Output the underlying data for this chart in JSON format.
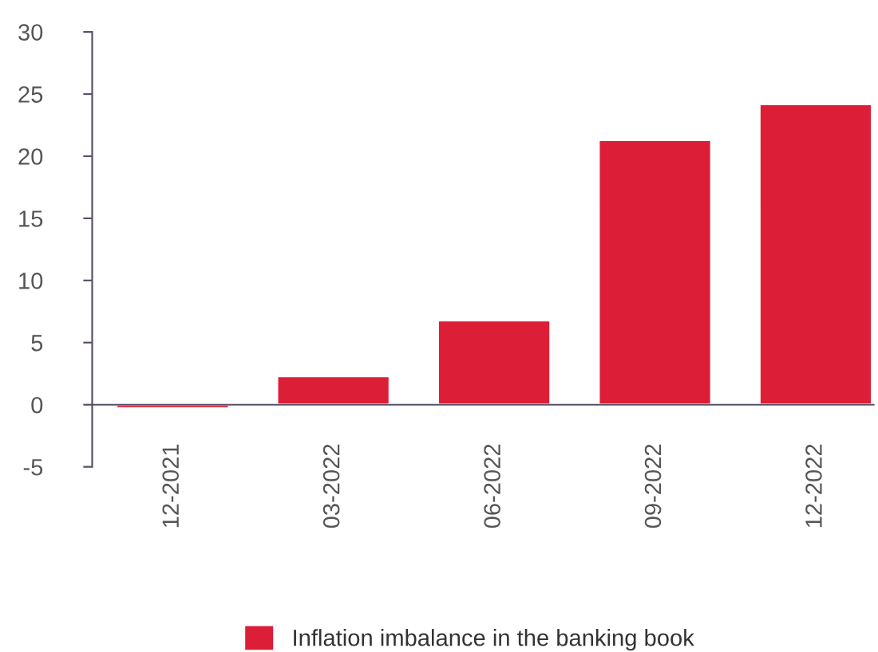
{
  "chart_data": {
    "type": "bar",
    "categories": [
      "12-2021",
      "03-2022",
      "06-2022",
      "09-2022",
      "12-2022"
    ],
    "series": [
      {
        "name": "Inflation imbalance in the banking book",
        "color": "#dc1f36",
        "values": [
          -0.3,
          2.3,
          6.8,
          21.3,
          24.2
        ]
      }
    ],
    "ylim": [
      -5,
      30
    ],
    "yticks": [
      -5,
      0,
      5,
      10,
      15,
      20,
      25,
      30
    ],
    "grid": false,
    "legend": "bottom"
  }
}
